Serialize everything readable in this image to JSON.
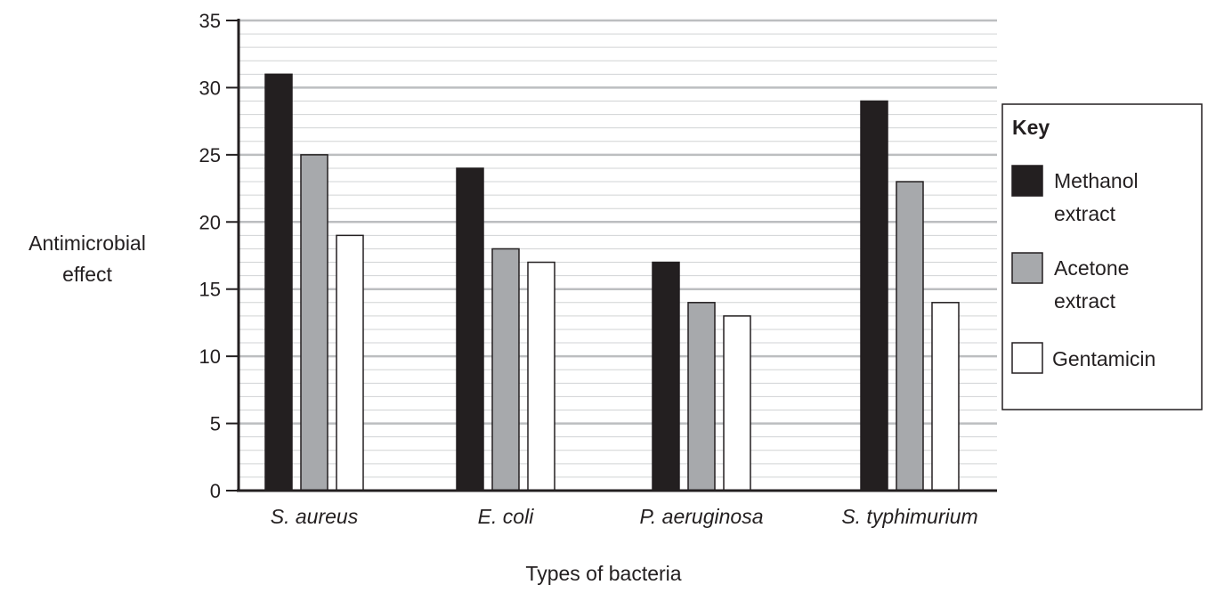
{
  "chart_data": {
    "type": "bar",
    "categories": [
      "S. aureus",
      "E. coli",
      "P. aeruginosa",
      "S. typhimurium"
    ],
    "series": [
      {
        "name": "Methanol extract",
        "line1": "Methanol",
        "line2": "extract",
        "color": "#231f20",
        "values": [
          31,
          24,
          17,
          29
        ]
      },
      {
        "name": "Acetone extract",
        "line1": "Acetone",
        "line2": "extract",
        "color": "#a7a9ac",
        "values": [
          25,
          18,
          14,
          23
        ]
      },
      {
        "name": "Gentamicin",
        "line1": "Gentamicin",
        "line2": "",
        "color": "#ffffff",
        "values": [
          19,
          17,
          13,
          14
        ]
      }
    ],
    "ylabel_lines": [
      "Antimicrobial",
      "effect"
    ],
    "xlabel": "Types of bacteria",
    "ylim": [
      0,
      35
    ],
    "major_ticks": [
      0,
      5,
      10,
      15,
      20,
      25,
      30,
      35
    ],
    "minor_step": 1,
    "grid": true,
    "legend_title": "Key",
    "legend_position": "right",
    "colors": {
      "axis": "#231f20",
      "major_grid": "#bcbec0",
      "minor_grid": "#d1d3d4"
    }
  }
}
